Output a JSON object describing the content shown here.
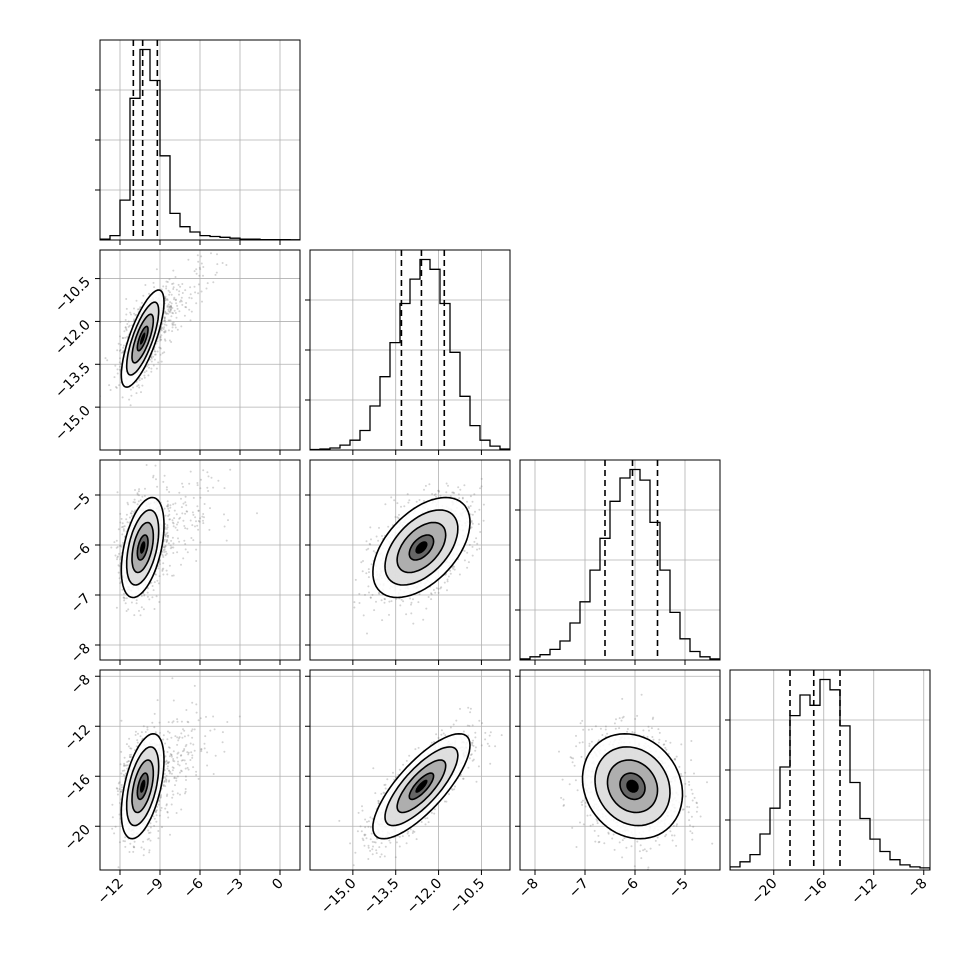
{
  "chart_data": {
    "type": "corner",
    "n_params": 4,
    "colors": {
      "contour": "#000000",
      "points": "#808080",
      "density": "#000000",
      "grid": "#b0b0b0"
    },
    "params": [
      {
        "range": [
          -13.5,
          1.5
        ],
        "ticks": [
          -12,
          -9,
          -6,
          -3,
          0
        ],
        "tick_labels": [
          "−12",
          "−9",
          "−6",
          "−3",
          "0"
        ],
        "center": -10.3,
        "sigma": 0.8,
        "quantiles": [
          -11.0,
          -10.3,
          -9.2
        ]
      },
      {
        "range": [
          -16.5,
          -9.5
        ],
        "ticks": [
          -15.0,
          -13.5,
          -12.0,
          -10.5
        ],
        "tick_labels": [
          "−15.0",
          "−13.5",
          "−12.0",
          "−10.5"
        ],
        "center": -12.6,
        "sigma": 0.85,
        "quantiles": [
          -13.3,
          -12.6,
          -11.8
        ]
      },
      {
        "range": [
          -8.3,
          -4.3
        ],
        "ticks": [
          -8,
          -7,
          -6,
          -5
        ],
        "tick_labels": [
          "−8",
          "−7",
          "−6",
          "−5"
        ],
        "center": -6.05,
        "sigma": 0.5,
        "quantiles": [
          -6.6,
          -6.05,
          -5.55
        ]
      },
      {
        "range": [
          -23.5,
          -7.5
        ],
        "ticks": [
          -20,
          -16,
          -12,
          -8
        ],
        "tick_labels": [
          "−20",
          "−16",
          "−12",
          "−8"
        ],
        "center": -16.8,
        "sigma": 2.1,
        "quantiles": [
          -18.7,
          -16.8,
          -14.7
        ]
      }
    ],
    "histograms": [
      {
        "bins": [
          -13.5,
          -12.75,
          -12.0,
          -11.25,
          -10.5,
          -9.75,
          -9.0,
          -8.25,
          -7.5,
          -6.75,
          -6.0,
          -5.25,
          -4.5,
          -3.75,
          -3.0,
          -2.25,
          -1.5,
          -0.75,
          0,
          0.75,
          1.5
        ],
        "counts": [
          1,
          5,
          45,
          160,
          215,
          180,
          95,
          30,
          15,
          9,
          5,
          4,
          3,
          2,
          1,
          1,
          0.5,
          0.5,
          0.3,
          0.2
        ]
      },
      {
        "bins": [
          -16.5,
          -16.15,
          -15.8,
          -15.45,
          -15.1,
          -14.75,
          -14.4,
          -14.05,
          -13.7,
          -13.35,
          -13.0,
          -12.65,
          -12.3,
          -11.95,
          -11.6,
          -11.25,
          -10.9,
          -10.55,
          -10.2,
          -9.85,
          -9.5
        ],
        "counts": [
          0.5,
          1,
          2,
          5,
          10,
          20,
          45,
          75,
          110,
          150,
          175,
          195,
          185,
          150,
          100,
          55,
          25,
          10,
          4,
          1
        ]
      },
      {
        "bins": [
          -8.3,
          -8.1,
          -7.9,
          -7.7,
          -7.5,
          -7.3,
          -7.1,
          -6.9,
          -6.7,
          -6.5,
          -6.3,
          -6.1,
          -5.9,
          -5.7,
          -5.5,
          -5.3,
          -5.1,
          -4.9,
          -4.7,
          -4.5,
          -4.3
        ],
        "counts": [
          1,
          3,
          5,
          10,
          18,
          35,
          55,
          85,
          115,
          150,
          172,
          180,
          170,
          130,
          85,
          45,
          20,
          8,
          3,
          1
        ]
      },
      {
        "bins": [
          -23.5,
          -22.7,
          -21.9,
          -21.1,
          -20.3,
          -19.5,
          -18.7,
          -17.9,
          -17.1,
          -16.3,
          -15.5,
          -14.7,
          -13.9,
          -13.1,
          -12.3,
          -11.5,
          -10.7,
          -9.9,
          -9.1,
          -8.3,
          -7.5
        ],
        "counts": [
          3,
          8,
          15,
          35,
          60,
          100,
          150,
          170,
          160,
          185,
          175,
          140,
          85,
          50,
          30,
          18,
          10,
          5,
          3,
          2
        ]
      }
    ],
    "pairs": [
      {
        "x": 0,
        "y": 1,
        "rho": 0.75
      },
      {
        "x": 0,
        "y": 2,
        "rho": 0.45
      },
      {
        "x": 1,
        "y": 2,
        "rho": 0.5
      },
      {
        "x": 0,
        "y": 3,
        "rho": 0.5
      },
      {
        "x": 1,
        "y": 3,
        "rho": 0.78
      },
      {
        "x": 2,
        "y": 3,
        "rho": -0.15
      }
    ],
    "contour_levels_sigma": [
      0.5,
      1.0,
      1.5,
      2.0
    ],
    "grid": true
  }
}
